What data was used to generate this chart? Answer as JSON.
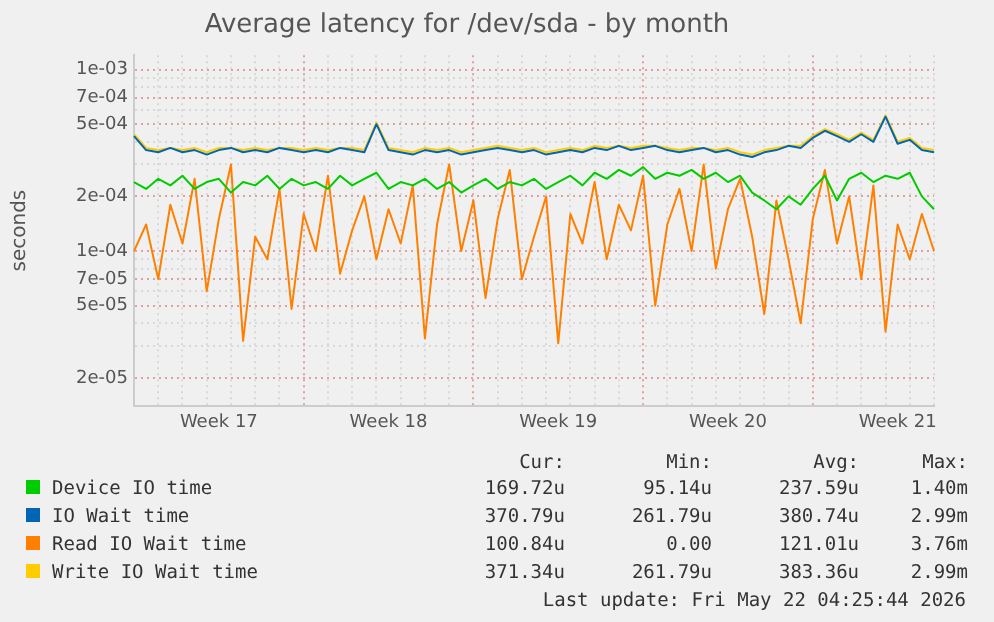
{
  "chart_data": {
    "type": "line",
    "title": "Average latency for /dev/sda - by month",
    "ylabel": "seconds",
    "categories": [
      null,
      null,
      null,
      null,
      null,
      null,
      null,
      "Week 17",
      null,
      null,
      null,
      null,
      null,
      null,
      null,
      null,
      null,
      null,
      null,
      null,
      null,
      "Week 18",
      null,
      null,
      null,
      null,
      null,
      null,
      null,
      null,
      null,
      null,
      null,
      null,
      null,
      "Week 19",
      null,
      null,
      null,
      null,
      null,
      null,
      null,
      null,
      null,
      null,
      null,
      null,
      null,
      "Week 20",
      null,
      null,
      null,
      null,
      null,
      null,
      null,
      null,
      null,
      null,
      null,
      null,
      null,
      "Week 21",
      null,
      null,
      null
    ],
    "series": [
      {
        "name": "Device IO time",
        "color": "#00cc00",
        "values": [
          0.00024,
          0.00022,
          0.00025,
          0.00023,
          0.00026,
          0.00022,
          0.00024,
          0.00025,
          0.00021,
          0.00024,
          0.00023,
          0.00026,
          0.00022,
          0.00025,
          0.00023,
          0.00024,
          0.00022,
          0.00026,
          0.00023,
          0.00025,
          0.00027,
          0.00022,
          0.00024,
          0.00023,
          0.00025,
          0.00022,
          0.00024,
          0.00021,
          0.00023,
          0.00025,
          0.00022,
          0.00024,
          0.00023,
          0.00025,
          0.00022,
          0.00024,
          0.00026,
          0.00023,
          0.00027,
          0.00025,
          0.00028,
          0.00026,
          0.00029,
          0.00025,
          0.00027,
          0.00026,
          0.00028,
          0.00025,
          0.00027,
          0.00024,
          0.00026,
          0.00021,
          0.00019,
          0.00017,
          0.0002,
          0.00018,
          0.00022,
          0.00026,
          0.00019,
          0.00025,
          0.00027,
          0.00024,
          0.00026,
          0.00025,
          0.00027,
          0.0002,
          0.00017
        ]
      },
      {
        "name": "IO Wait time",
        "color": "#0066b3",
        "values": [
          0.00043,
          0.00036,
          0.00035,
          0.00037,
          0.00035,
          0.00036,
          0.00034,
          0.00036,
          0.00037,
          0.00035,
          0.00036,
          0.00035,
          0.00037,
          0.00036,
          0.00035,
          0.00036,
          0.00035,
          0.00037,
          0.00036,
          0.00035,
          0.0005,
          0.00036,
          0.00035,
          0.00034,
          0.00036,
          0.00035,
          0.00036,
          0.00034,
          0.00035,
          0.00036,
          0.00037,
          0.00036,
          0.00035,
          0.00036,
          0.00034,
          0.00035,
          0.00036,
          0.00035,
          0.00037,
          0.00036,
          0.00038,
          0.00036,
          0.00037,
          0.00038,
          0.00036,
          0.00035,
          0.00036,
          0.00037,
          0.00035,
          0.00036,
          0.00034,
          0.00033,
          0.00035,
          0.00036,
          0.00038,
          0.00037,
          0.00042,
          0.00046,
          0.00043,
          0.0004,
          0.00044,
          0.0004,
          0.00055,
          0.00039,
          0.00041,
          0.00036,
          0.00035
        ]
      },
      {
        "name": "Read IO Wait time",
        "color": "#ff8000",
        "values": [
          0.0001,
          0.00014,
          7e-05,
          0.00018,
          0.00011,
          0.00025,
          6e-05,
          0.00015,
          0.0003,
          3.2e-05,
          0.00012,
          9e-05,
          0.00022,
          4.8e-05,
          0.00016,
          0.0001,
          0.00026,
          7.5e-05,
          0.00013,
          0.0002,
          9e-05,
          0.00017,
          0.00011,
          0.00023,
          3.3e-05,
          0.00014,
          0.0003,
          0.0001,
          0.00019,
          5.5e-05,
          0.00015,
          0.00028,
          7e-05,
          0.00012,
          0.0002,
          3.1e-05,
          0.00016,
          0.00011,
          0.00024,
          9e-05,
          0.00018,
          0.00013,
          0.00026,
          5e-05,
          0.00014,
          0.00022,
          0.0001,
          0.0003,
          8e-05,
          0.00017,
          0.00025,
          0.00012,
          4.5e-05,
          0.00019,
          9e-05,
          4e-05,
          0.00015,
          0.00028,
          0.00011,
          0.0002,
          7e-05,
          0.00023,
          3.6e-05,
          0.00014,
          9e-05,
          0.00016,
          0.0001
        ]
      },
      {
        "name": "Write IO Wait time",
        "color": "#ffcc00",
        "values": [
          0.00044,
          0.00037,
          0.00036,
          0.00037,
          0.00036,
          0.00037,
          0.00035,
          0.00037,
          0.00037,
          0.00036,
          0.00037,
          0.00036,
          0.00037,
          0.00037,
          0.00036,
          0.00037,
          0.00036,
          0.00037,
          0.00037,
          0.00036,
          0.00051,
          0.00037,
          0.00036,
          0.00035,
          0.00037,
          0.00036,
          0.00037,
          0.00035,
          0.00036,
          0.00037,
          0.00038,
          0.00037,
          0.00036,
          0.00037,
          0.00035,
          0.00036,
          0.00037,
          0.00036,
          0.00038,
          0.00037,
          0.00038,
          0.00037,
          0.00038,
          0.00038,
          0.00037,
          0.00036,
          0.00037,
          0.00037,
          0.00036,
          0.00037,
          0.00035,
          0.00034,
          0.00036,
          0.00037,
          0.00038,
          0.00038,
          0.00043,
          0.00047,
          0.00044,
          0.00041,
          0.00045,
          0.00041,
          0.00056,
          0.0004,
          0.00042,
          0.00037,
          0.00036
        ]
      }
    ],
    "log": "y",
    "ylim": [
      1.4e-05,
      0.0012
    ],
    "yticks": [
      {
        "value": 2e-05,
        "label": "2e-05"
      },
      {
        "value": 3e-05,
        "label": null
      },
      {
        "value": 4e-05,
        "label": null
      },
      {
        "value": 5e-05,
        "label": "5e-05"
      },
      {
        "value": 6e-05,
        "label": null
      },
      {
        "value": 7e-05,
        "label": "7e-05"
      },
      {
        "value": 8e-05,
        "label": null
      },
      {
        "value": 9e-05,
        "label": null
      },
      {
        "value": 0.0001,
        "label": "1e-04"
      },
      {
        "value": 0.0002,
        "label": "2e-04"
      },
      {
        "value": 0.0003,
        "label": null
      },
      {
        "value": 0.0004,
        "label": null
      },
      {
        "value": 0.0005,
        "label": "5e-04"
      },
      {
        "value": 0.0006,
        "label": null
      },
      {
        "value": 0.0007,
        "label": "7e-04"
      },
      {
        "value": 0.0008,
        "label": null
      },
      {
        "value": 0.0009,
        "label": null
      },
      {
        "value": 0.001,
        "label": "1e-03"
      }
    ],
    "grid": true,
    "legend": "bottom",
    "marker": "none",
    "line_style": "solid",
    "annotations": [
      "Cur:",
      "Min:",
      "Avg:",
      "Max:",
      "169.72u",
      "95.14u",
      "237.59u",
      "1.40m",
      "370.79u",
      "261.79u",
      "380.74u",
      "2.99m",
      "100.84u",
      "0.00",
      "121.01u",
      "3.76m",
      "371.34u",
      "261.79u",
      "383.36u",
      "2.99m",
      "Last update: Fri May 22 04:25:44 2026"
    ]
  }
}
